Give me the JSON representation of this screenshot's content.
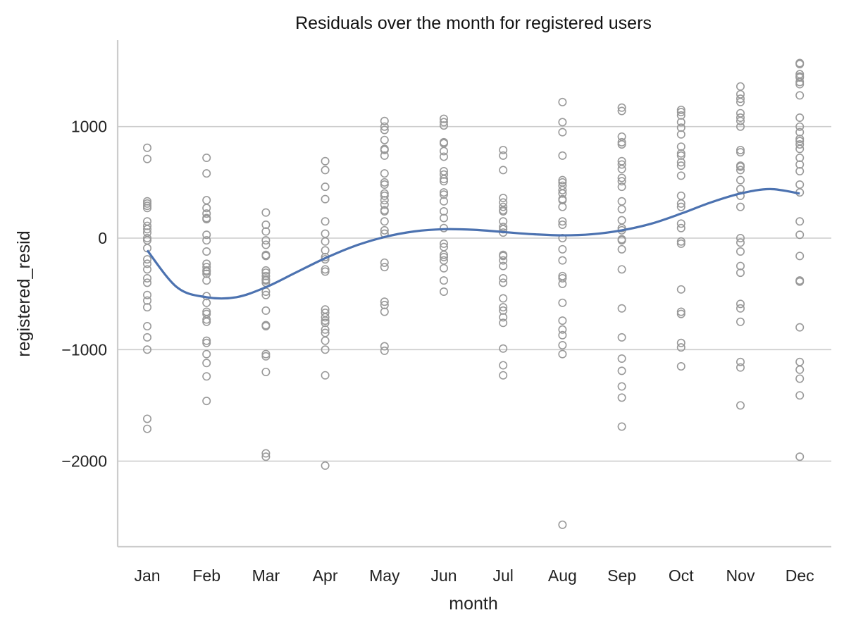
{
  "chart_data": {
    "type": "scatter",
    "title": "Residuals over the month for registered users",
    "xlabel": "month",
    "ylabel": "registered_resid",
    "categories": [
      "Jan",
      "Feb",
      "Mar",
      "Apr",
      "May",
      "Jun",
      "Jul",
      "Aug",
      "Sep",
      "Oct",
      "Nov",
      "Dec"
    ],
    "ylim": [
      -2750,
      1800
    ],
    "yticks": [
      1000,
      0,
      -1000,
      -2000
    ],
    "ytick_labels": [
      "1000",
      "0",
      "−1000",
      "−2000"
    ],
    "grid": "horizontal",
    "colors": {
      "points": "#999999",
      "trend": "#4c72b0"
    },
    "points": {
      "Jan": [
        810,
        710,
        330,
        310,
        290,
        270,
        150,
        110,
        80,
        50,
        0,
        -20,
        -90,
        -190,
        -230,
        -280,
        -360,
        -400,
        -510,
        -560,
        -620,
        -790,
        -890,
        -1000,
        -1620,
        -1710
      ],
      "Feb": [
        720,
        580,
        340,
        270,
        220,
        180,
        170,
        30,
        -20,
        -120,
        -230,
        -260,
        -290,
        -300,
        -320,
        -380,
        -520,
        -580,
        -660,
        -680,
        -730,
        -750,
        -920,
        -940,
        -1040,
        -1120,
        -1240,
        -1460
      ],
      "Mar": [
        230,
        120,
        60,
        -20,
        -60,
        -150,
        -160,
        -290,
        -310,
        -340,
        -370,
        -380,
        -400,
        -480,
        -510,
        -650,
        -780,
        -790,
        -1040,
        -1060,
        -1200,
        -1930,
        -1960
      ],
      "Apr": [
        690,
        610,
        460,
        350,
        150,
        40,
        -30,
        -110,
        -170,
        -190,
        -280,
        -300,
        -640,
        -670,
        -710,
        -740,
        -760,
        -820,
        -850,
        -920,
        -1000,
        -1230,
        -2040
      ],
      "May": [
        1050,
        1000,
        970,
        880,
        800,
        790,
        740,
        580,
        500,
        480,
        400,
        380,
        340,
        300,
        250,
        240,
        150,
        70,
        40,
        -220,
        -260,
        -570,
        -600,
        -660,
        -970,
        -1010
      ],
      "Jun": [
        1070,
        1040,
        1010,
        860,
        850,
        780,
        730,
        600,
        570,
        530,
        510,
        410,
        390,
        330,
        240,
        180,
        90,
        -50,
        -80,
        -150,
        -170,
        -200,
        -270,
        -380,
        -480
      ],
      "Jul": [
        790,
        740,
        610,
        360,
        320,
        280,
        250,
        240,
        150,
        100,
        80,
        50,
        -150,
        -160,
        -200,
        -250,
        -360,
        -400,
        -540,
        -620,
        -650,
        -710,
        -760,
        -990,
        -1140,
        -1230
      ],
      "Aug": [
        1220,
        1040,
        950,
        740,
        520,
        500,
        470,
        430,
        400,
        350,
        340,
        280,
        150,
        120,
        0,
        -100,
        -200,
        -340,
        -360,
        -410,
        -580,
        -740,
        -820,
        -870,
        -960,
        -1040,
        -2570
      ],
      "Sep": [
        1170,
        1140,
        910,
        860,
        840,
        690,
        660,
        620,
        540,
        510,
        460,
        330,
        260,
        160,
        90,
        70,
        -10,
        -20,
        -100,
        -280,
        -630,
        -890,
        -1080,
        -1190,
        -1330,
        -1430,
        -1690
      ],
      "Oct": [
        1150,
        1130,
        1100,
        1040,
        990,
        930,
        820,
        760,
        740,
        680,
        650,
        560,
        380,
        310,
        280,
        130,
        90,
        -30,
        -50,
        -460,
        -660,
        -680,
        -940,
        -980,
        -1150
      ],
      "Nov": [
        1360,
        1290,
        1250,
        1220,
        1120,
        1080,
        1050,
        1000,
        790,
        770,
        650,
        640,
        610,
        520,
        440,
        380,
        280,
        0,
        -40,
        -120,
        -250,
        -310,
        -590,
        -630,
        -750,
        -1110,
        -1160,
        -1500
      ],
      "Dec": [
        1570,
        1560,
        1470,
        1450,
        1440,
        1400,
        1380,
        1280,
        1080,
        1000,
        950,
        890,
        870,
        840,
        800,
        720,
        660,
        600,
        480,
        410,
        150,
        30,
        -160,
        -380,
        -390,
        -800,
        -1110,
        -1180,
        -1260,
        -1410,
        -1960
      ]
    },
    "trend": [
      {
        "x": "Jan",
        "y": -110
      },
      {
        "x": 1.5,
        "y": -440
      },
      {
        "x": "Feb",
        "y": -530
      },
      {
        "x": 2.5,
        "y": -530
      },
      {
        "x": "Mar",
        "y": -440
      },
      {
        "x": 3.5,
        "y": -310
      },
      {
        "x": "Apr",
        "y": -180
      },
      {
        "x": 4.5,
        "y": -70
      },
      {
        "x": "May",
        "y": 10
      },
      {
        "x": 5.5,
        "y": 60
      },
      {
        "x": "Jun",
        "y": 80
      },
      {
        "x": 6.5,
        "y": 75
      },
      {
        "x": "Jul",
        "y": 55
      },
      {
        "x": 7.5,
        "y": 35
      },
      {
        "x": "Aug",
        "y": 25
      },
      {
        "x": 8.5,
        "y": 35
      },
      {
        "x": "Sep",
        "y": 70
      },
      {
        "x": 9.5,
        "y": 130
      },
      {
        "x": "Oct",
        "y": 220
      },
      {
        "x": 10.5,
        "y": 320
      },
      {
        "x": "Nov",
        "y": 400
      },
      {
        "x": 11.5,
        "y": 440
      },
      {
        "x": "Dec",
        "y": 400
      }
    ]
  }
}
